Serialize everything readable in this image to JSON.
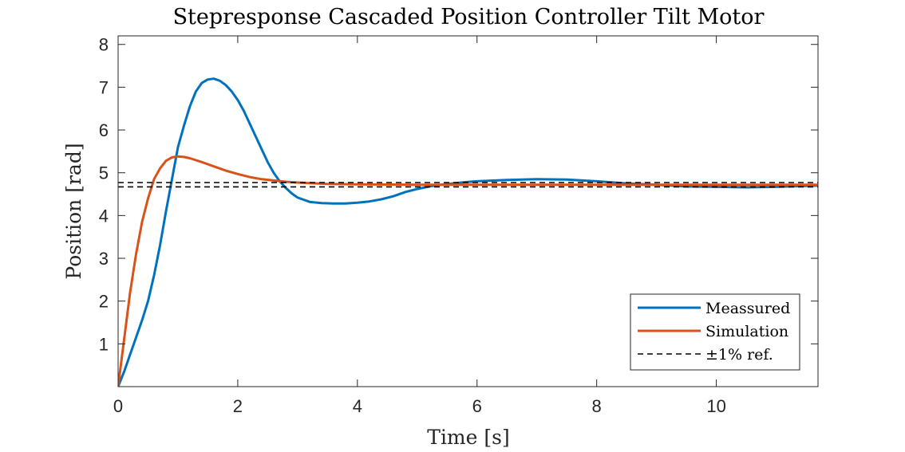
{
  "chart_data": {
    "type": "line",
    "title": "Stepresponse Cascaded Position Controller Tilt Motor",
    "xlabel": "Time [s]",
    "ylabel": "Position [rad]",
    "xlim": [
      0,
      11.7
    ],
    "ylim": [
      0,
      8.2
    ],
    "xticks": [
      0,
      2,
      4,
      6,
      8,
      10
    ],
    "yticks": [
      1,
      2,
      3,
      4,
      5,
      6,
      7,
      8
    ],
    "grid": false,
    "legend_location": "bottom-right",
    "series": [
      {
        "name": "Meassured",
        "color": "#0072BD",
        "style": "solid",
        "x": [
          0,
          0.1,
          0.2,
          0.3,
          0.4,
          0.5,
          0.6,
          0.7,
          0.8,
          0.9,
          1.0,
          1.1,
          1.2,
          1.3,
          1.4,
          1.5,
          1.6,
          1.7,
          1.8,
          1.9,
          2.0,
          2.1,
          2.2,
          2.3,
          2.4,
          2.5,
          2.6,
          2.7,
          2.8,
          2.9,
          3.0,
          3.2,
          3.4,
          3.6,
          3.8,
          4.0,
          4.2,
          4.4,
          4.6,
          4.8,
          5.0,
          5.2,
          5.4,
          5.6,
          5.8,
          6.0,
          6.5,
          7.0,
          7.5,
          8.0,
          8.5,
          9.0,
          9.5,
          10.0,
          10.5,
          11.0,
          11.7
        ],
        "y": [
          0,
          0.35,
          0.75,
          1.15,
          1.55,
          2.0,
          2.6,
          3.3,
          4.1,
          4.85,
          5.6,
          6.1,
          6.55,
          6.9,
          7.1,
          7.18,
          7.2,
          7.15,
          7.05,
          6.9,
          6.7,
          6.45,
          6.15,
          5.85,
          5.55,
          5.25,
          5.0,
          4.8,
          4.65,
          4.52,
          4.42,
          4.32,
          4.29,
          4.28,
          4.28,
          4.3,
          4.33,
          4.38,
          4.45,
          4.55,
          4.62,
          4.68,
          4.72,
          4.75,
          4.78,
          4.8,
          4.83,
          4.85,
          4.84,
          4.8,
          4.75,
          4.72,
          4.68,
          4.67,
          4.66,
          4.67,
          4.7
        ]
      },
      {
        "name": "Simulation",
        "color": "#D95319",
        "style": "solid",
        "x": [
          0,
          0.1,
          0.2,
          0.3,
          0.4,
          0.5,
          0.6,
          0.7,
          0.8,
          0.9,
          1.0,
          1.1,
          1.2,
          1.4,
          1.6,
          1.8,
          2.0,
          2.2,
          2.4,
          2.6,
          2.8,
          3.0,
          3.5,
          4.0,
          5.0,
          6.0,
          8.0,
          10.0,
          11.7
        ],
        "y": [
          0,
          1.1,
          2.2,
          3.1,
          3.85,
          4.4,
          4.85,
          5.1,
          5.28,
          5.36,
          5.38,
          5.37,
          5.34,
          5.25,
          5.15,
          5.05,
          4.97,
          4.9,
          4.85,
          4.82,
          4.79,
          4.77,
          4.74,
          4.73,
          4.72,
          4.72,
          4.72,
          4.72,
          4.72
        ]
      },
      {
        "name": "±1% ref.",
        "color": "#000000",
        "style": "dashed",
        "x": [
          0,
          11.7
        ],
        "y": [
          4.77,
          4.77
        ]
      },
      {
        "name": "",
        "color": "#000000",
        "style": "dashed",
        "x": [
          0,
          11.7
        ],
        "y": [
          4.67,
          4.67
        ]
      }
    ]
  }
}
